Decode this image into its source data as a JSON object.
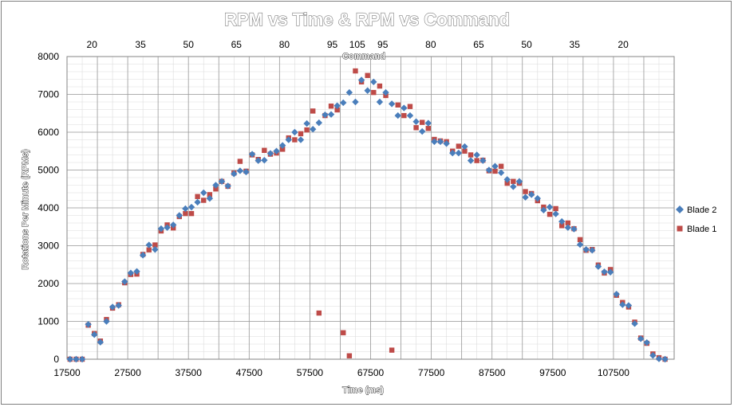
{
  "chart_data": {
    "type": "scatter",
    "title": "RPM vs Time & RPM vs Command",
    "xlabel": "Time (ms)",
    "ylabel": "Rotations Per Minute (RPMs)",
    "x2label": "Command",
    "xlim": [
      17500,
      117500
    ],
    "ylim": [
      0,
      8000
    ],
    "grid": true,
    "legend_position": "right",
    "x_ticks": [
      "17500",
      "27500",
      "37500",
      "47500",
      "57500",
      "67500",
      "77500",
      "87500",
      "97500",
      "107500"
    ],
    "x_tick_values": [
      17500,
      27500,
      37500,
      47500,
      57500,
      67500,
      77500,
      87500,
      97500,
      107500
    ],
    "y_ticks": [
      "0",
      "1000",
      "2000",
      "3000",
      "4000",
      "5000",
      "6000",
      "7000",
      "8000"
    ],
    "y_tick_values": [
      0,
      1000,
      2000,
      3000,
      4000,
      5000,
      6000,
      7000,
      8000
    ],
    "x2_ticks": [
      "20",
      "35",
      "50",
      "65",
      "80",
      "95",
      "105",
      "95",
      "80",
      "65",
      "50",
      "35",
      "20"
    ],
    "x2_tick_positions": [
      21600,
      29600,
      37500,
      45400,
      53300,
      61200,
      65300,
      69500,
      77400,
      85300,
      93200,
      101100,
      109100
    ],
    "series": [
      {
        "name": "Blade 2",
        "color": "#4a7ebb",
        "marker": "diamond",
        "points": [
          [
            18000,
            0
          ],
          [
            19000,
            0
          ],
          [
            20000,
            0
          ],
          [
            21000,
            920
          ],
          [
            22000,
            650
          ],
          [
            23000,
            450
          ],
          [
            24000,
            1000
          ],
          [
            25000,
            1380
          ],
          [
            26000,
            1420
          ],
          [
            27000,
            2050
          ],
          [
            28000,
            2280
          ],
          [
            29000,
            2320
          ],
          [
            30000,
            2750
          ],
          [
            31000,
            3020
          ],
          [
            32000,
            2900
          ],
          [
            33000,
            3450
          ],
          [
            34000,
            3480
          ],
          [
            35000,
            3550
          ],
          [
            36000,
            3800
          ],
          [
            37000,
            3980
          ],
          [
            38000,
            4020
          ],
          [
            39000,
            4150
          ],
          [
            40000,
            4400
          ],
          [
            41000,
            4250
          ],
          [
            42000,
            4600
          ],
          [
            43000,
            4700
          ],
          [
            44000,
            4580
          ],
          [
            45000,
            4900
          ],
          [
            46000,
            4980
          ],
          [
            47000,
            4950
          ],
          [
            48000,
            5420
          ],
          [
            49000,
            5250
          ],
          [
            50000,
            5260
          ],
          [
            51000,
            5440
          ],
          [
            52000,
            5500
          ],
          [
            53000,
            5650
          ],
          [
            54000,
            5800
          ],
          [
            55000,
            6000
          ],
          [
            56000,
            5800
          ],
          [
            57000,
            6230
          ],
          [
            58000,
            6080
          ],
          [
            59000,
            6250
          ],
          [
            60000,
            6460
          ],
          [
            61000,
            6470
          ],
          [
            62000,
            6700
          ],
          [
            63000,
            6780
          ],
          [
            64000,
            7050
          ],
          [
            65000,
            6800
          ],
          [
            66000,
            7380
          ],
          [
            67000,
            7100
          ],
          [
            68000,
            7330
          ],
          [
            69000,
            6800
          ],
          [
            70000,
            7050
          ],
          [
            71000,
            6750
          ],
          [
            72000,
            6440
          ],
          [
            73000,
            6640
          ],
          [
            74000,
            6440
          ],
          [
            75000,
            6280
          ],
          [
            76000,
            6020
          ],
          [
            77000,
            6240
          ],
          [
            78000,
            5750
          ],
          [
            79000,
            5750
          ],
          [
            80000,
            5700
          ],
          [
            81000,
            5450
          ],
          [
            82000,
            5450
          ],
          [
            83000,
            5620
          ],
          [
            84000,
            5250
          ],
          [
            85000,
            5400
          ],
          [
            86000,
            5250
          ],
          [
            87000,
            5000
          ],
          [
            88000,
            5100
          ],
          [
            89000,
            4930
          ],
          [
            90000,
            4750
          ],
          [
            91000,
            4560
          ],
          [
            92000,
            4700
          ],
          [
            93000,
            4280
          ],
          [
            94000,
            4350
          ],
          [
            95000,
            4250
          ],
          [
            96000,
            3940
          ],
          [
            97000,
            4020
          ],
          [
            98000,
            3840
          ],
          [
            99000,
            3640
          ],
          [
            100000,
            3480
          ],
          [
            101000,
            3440
          ],
          [
            102000,
            3030
          ],
          [
            103000,
            2900
          ],
          [
            104000,
            2880
          ],
          [
            105000,
            2450
          ],
          [
            106000,
            2310
          ],
          [
            107000,
            2300
          ],
          [
            108000,
            1720
          ],
          [
            109000,
            1440
          ],
          [
            110000,
            1420
          ],
          [
            111000,
            940
          ],
          [
            112000,
            540
          ],
          [
            113000,
            440
          ],
          [
            114000,
            100
          ],
          [
            115000,
            10
          ],
          [
            116000,
            0
          ]
        ]
      },
      {
        "name": "Blade 1",
        "color": "#be4b48",
        "marker": "square",
        "points": [
          [
            18000,
            0
          ],
          [
            19000,
            0
          ],
          [
            20000,
            0
          ],
          [
            21000,
            900
          ],
          [
            22000,
            680
          ],
          [
            23000,
            480
          ],
          [
            24000,
            1050
          ],
          [
            25000,
            1350
          ],
          [
            26000,
            1440
          ],
          [
            27000,
            2020
          ],
          [
            28000,
            2240
          ],
          [
            29000,
            2250
          ],
          [
            30000,
            2770
          ],
          [
            31000,
            2890
          ],
          [
            32000,
            3020
          ],
          [
            33000,
            3390
          ],
          [
            34000,
            3550
          ],
          [
            35000,
            3470
          ],
          [
            36000,
            3770
          ],
          [
            37000,
            3850
          ],
          [
            38000,
            3850
          ],
          [
            39000,
            4300
          ],
          [
            40000,
            4200
          ],
          [
            41000,
            4350
          ],
          [
            42000,
            4500
          ],
          [
            43000,
            4700
          ],
          [
            44000,
            4570
          ],
          [
            45000,
            4920
          ],
          [
            46000,
            5230
          ],
          [
            47000,
            4970
          ],
          [
            48000,
            5400
          ],
          [
            49000,
            5280
          ],
          [
            50000,
            5520
          ],
          [
            51000,
            5420
          ],
          [
            52000,
            5450
          ],
          [
            53000,
            5550
          ],
          [
            54000,
            5850
          ],
          [
            55000,
            5800
          ],
          [
            56000,
            5960
          ],
          [
            57000,
            6060
          ],
          [
            58000,
            6560
          ],
          [
            59000,
            1220
          ],
          [
            60000,
            6440
          ],
          [
            61000,
            6690
          ],
          [
            62000,
            6590
          ],
          [
            63000,
            700
          ],
          [
            64000,
            90
          ],
          [
            65000,
            7620
          ],
          [
            66000,
            7330
          ],
          [
            67000,
            7500
          ],
          [
            68000,
            7050
          ],
          [
            69000,
            7220
          ],
          [
            70000,
            6970
          ],
          [
            71000,
            240
          ],
          [
            72000,
            6720
          ],
          [
            73000,
            6440
          ],
          [
            74000,
            6680
          ],
          [
            75000,
            6120
          ],
          [
            76000,
            6260
          ],
          [
            77000,
            6100
          ],
          [
            78000,
            5810
          ],
          [
            79000,
            5770
          ],
          [
            80000,
            5750
          ],
          [
            81000,
            5500
          ],
          [
            82000,
            5630
          ],
          [
            83000,
            5500
          ],
          [
            84000,
            5400
          ],
          [
            85000,
            5250
          ],
          [
            86000,
            5260
          ],
          [
            87000,
            4980
          ],
          [
            88000,
            4970
          ],
          [
            89000,
            5100
          ],
          [
            90000,
            4650
          ],
          [
            91000,
            4700
          ],
          [
            92000,
            4650
          ],
          [
            93000,
            4430
          ],
          [
            94000,
            4380
          ],
          [
            95000,
            4190
          ],
          [
            96000,
            4020
          ],
          [
            97000,
            3830
          ],
          [
            98000,
            3980
          ],
          [
            99000,
            3530
          ],
          [
            100000,
            3600
          ],
          [
            101000,
            3450
          ],
          [
            102000,
            3160
          ],
          [
            103000,
            2880
          ],
          [
            104000,
            2900
          ],
          [
            105000,
            2490
          ],
          [
            106000,
            2280
          ],
          [
            107000,
            2370
          ],
          [
            108000,
            1690
          ],
          [
            109000,
            1500
          ],
          [
            110000,
            1380
          ],
          [
            111000,
            980
          ],
          [
            112000,
            560
          ],
          [
            113000,
            420
          ],
          [
            114000,
            140
          ],
          [
            115000,
            40
          ],
          [
            116000,
            0
          ]
        ]
      }
    ]
  }
}
